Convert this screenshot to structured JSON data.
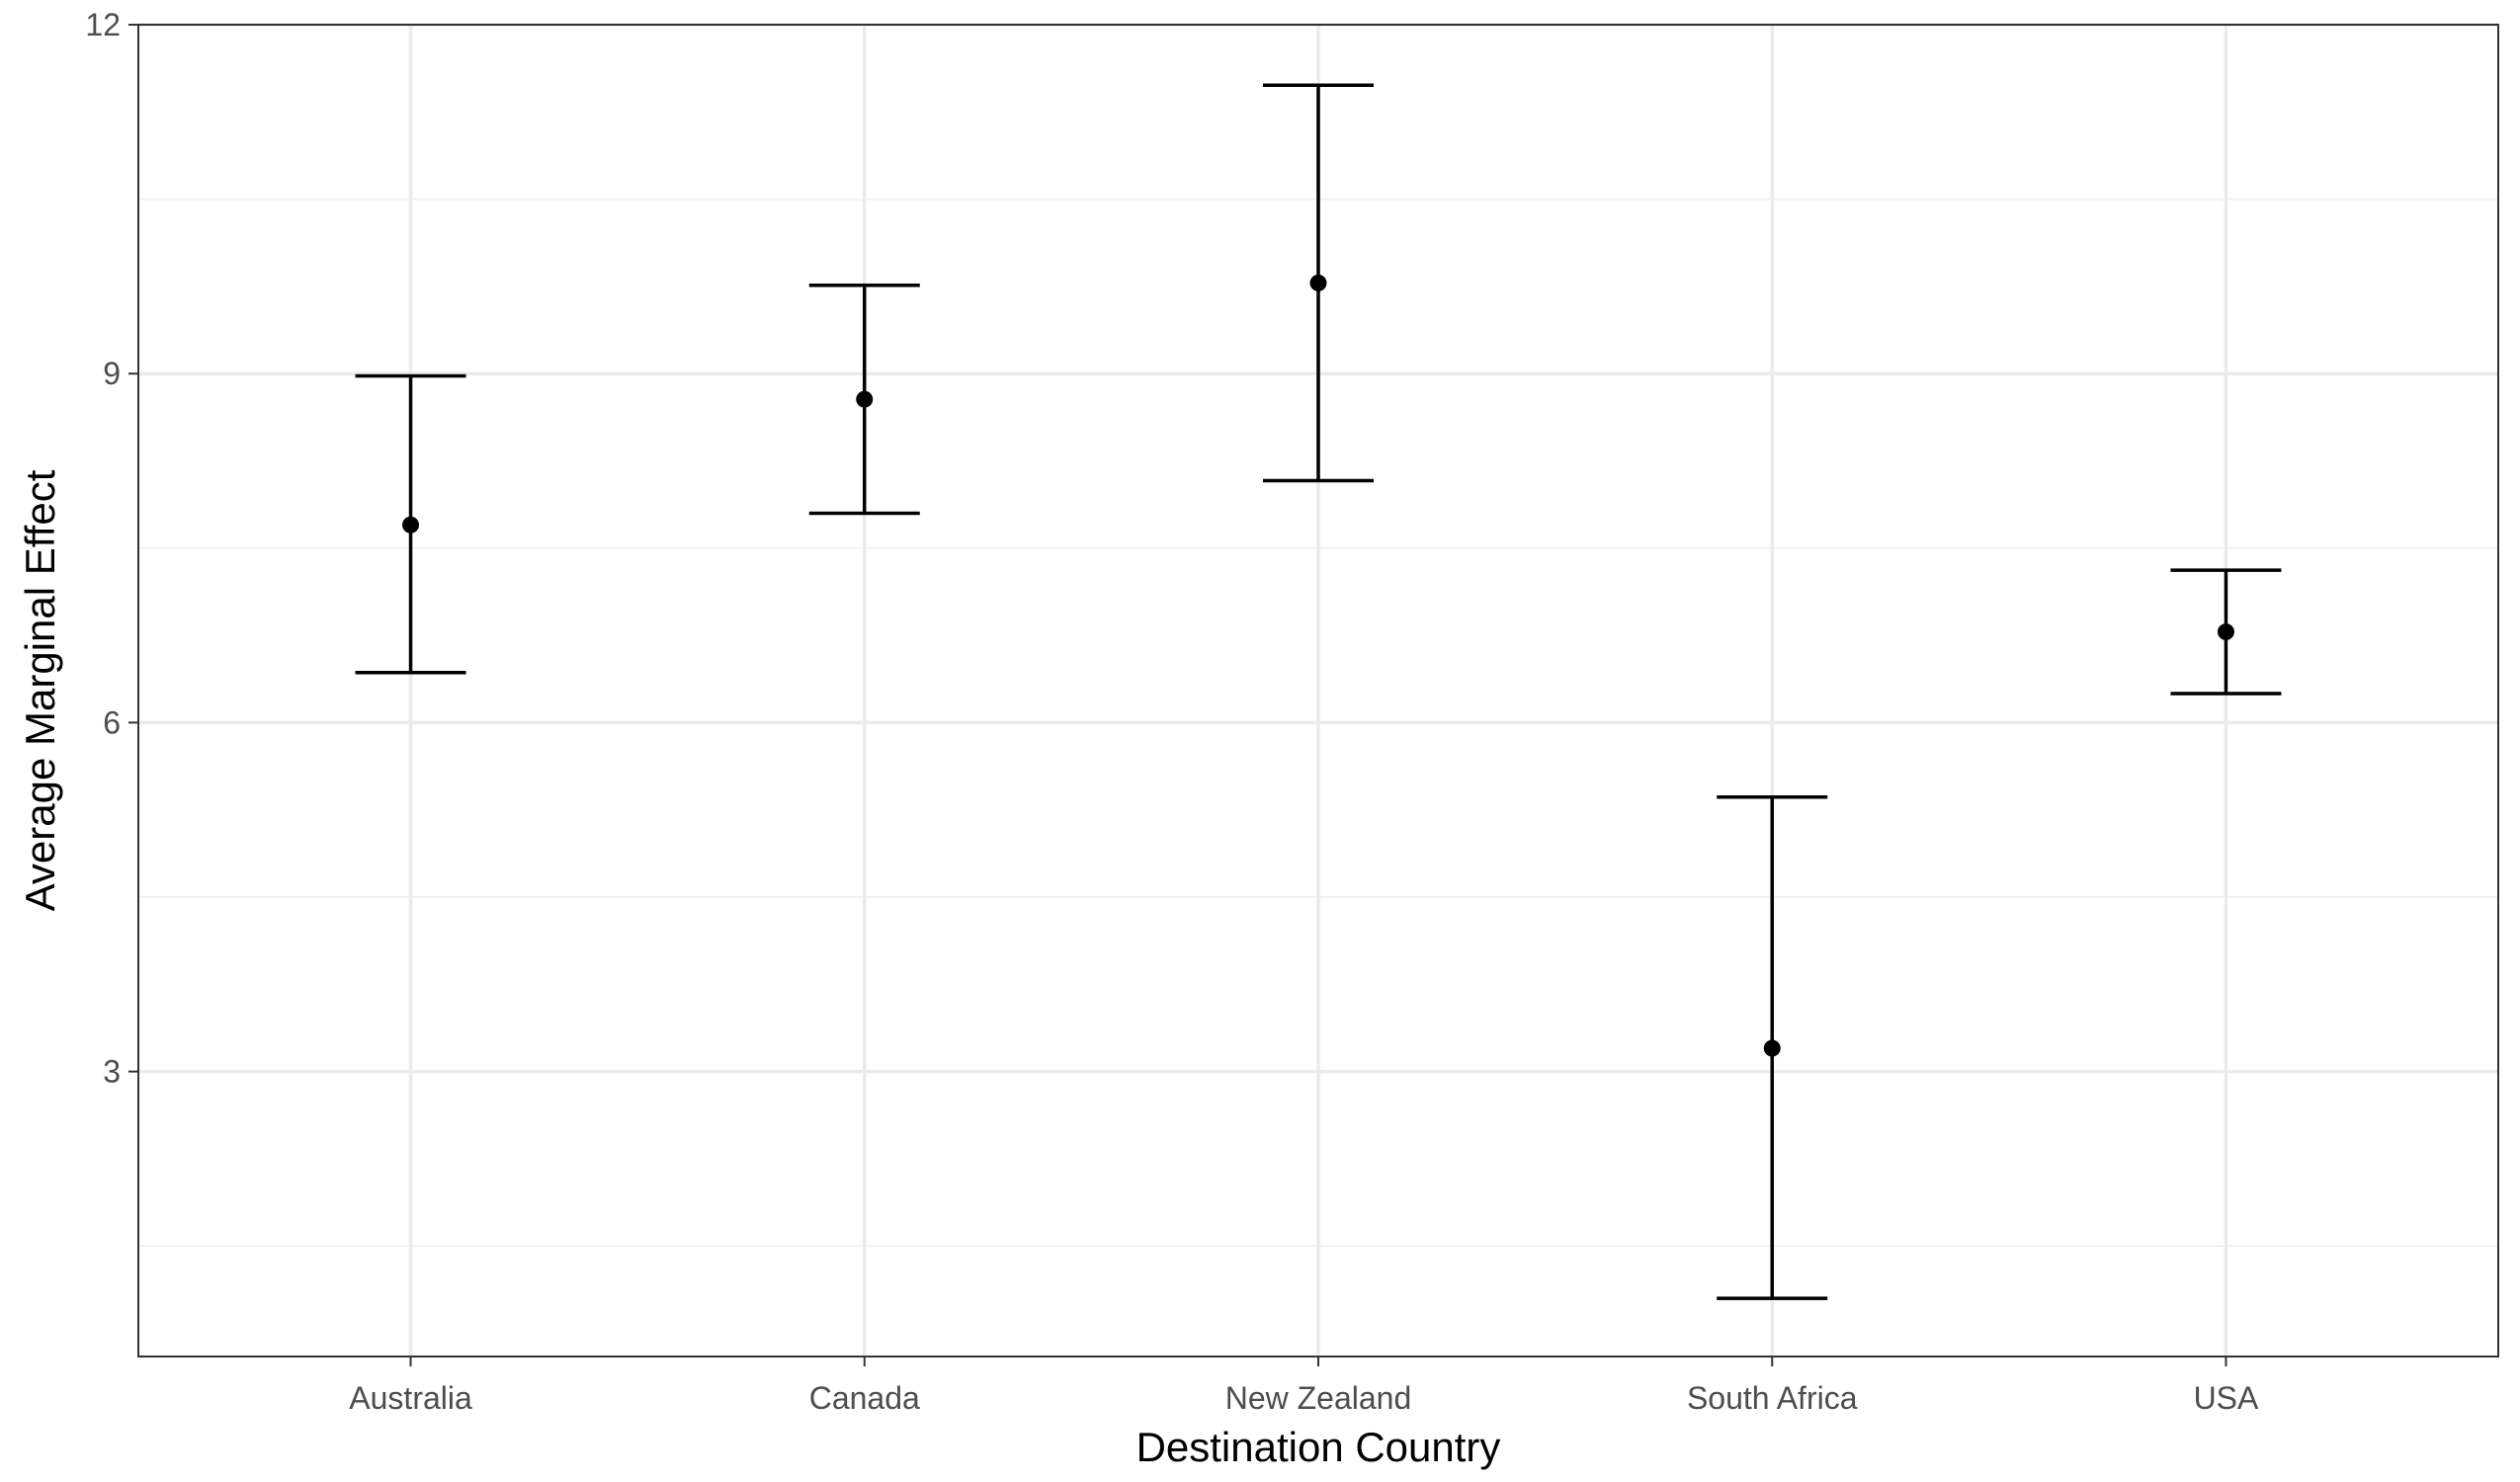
{
  "chart_data": {
    "type": "errorbar",
    "title": "",
    "xlabel": "Destination Country",
    "ylabel": "Average Marginal Effect",
    "categories": [
      "Australia",
      "Canada",
      "New Zealand",
      "South Africa",
      "USA"
    ],
    "series": [
      {
        "values": [
          7.7,
          8.78,
          9.78,
          3.2,
          6.78
        ],
        "lower": [
          6.43,
          7.8,
          8.08,
          1.05,
          6.25
        ],
        "upper": [
          8.98,
          9.76,
          11.48,
          5.36,
          7.31
        ]
      }
    ],
    "ylim": [
      0.55,
      12.0
    ],
    "yticks": [
      3,
      6,
      9,
      12
    ],
    "ytick_labels": [
      "3",
      "6",
      "9",
      "12"
    ],
    "grid": true,
    "colors": {
      "grid_major": "#ebebeb",
      "grid_minor": "#f2f2f2",
      "panel_border": "#333333",
      "marks": "#000000",
      "tick_text": "#4d4d4d",
      "title_text": "#000000"
    }
  }
}
